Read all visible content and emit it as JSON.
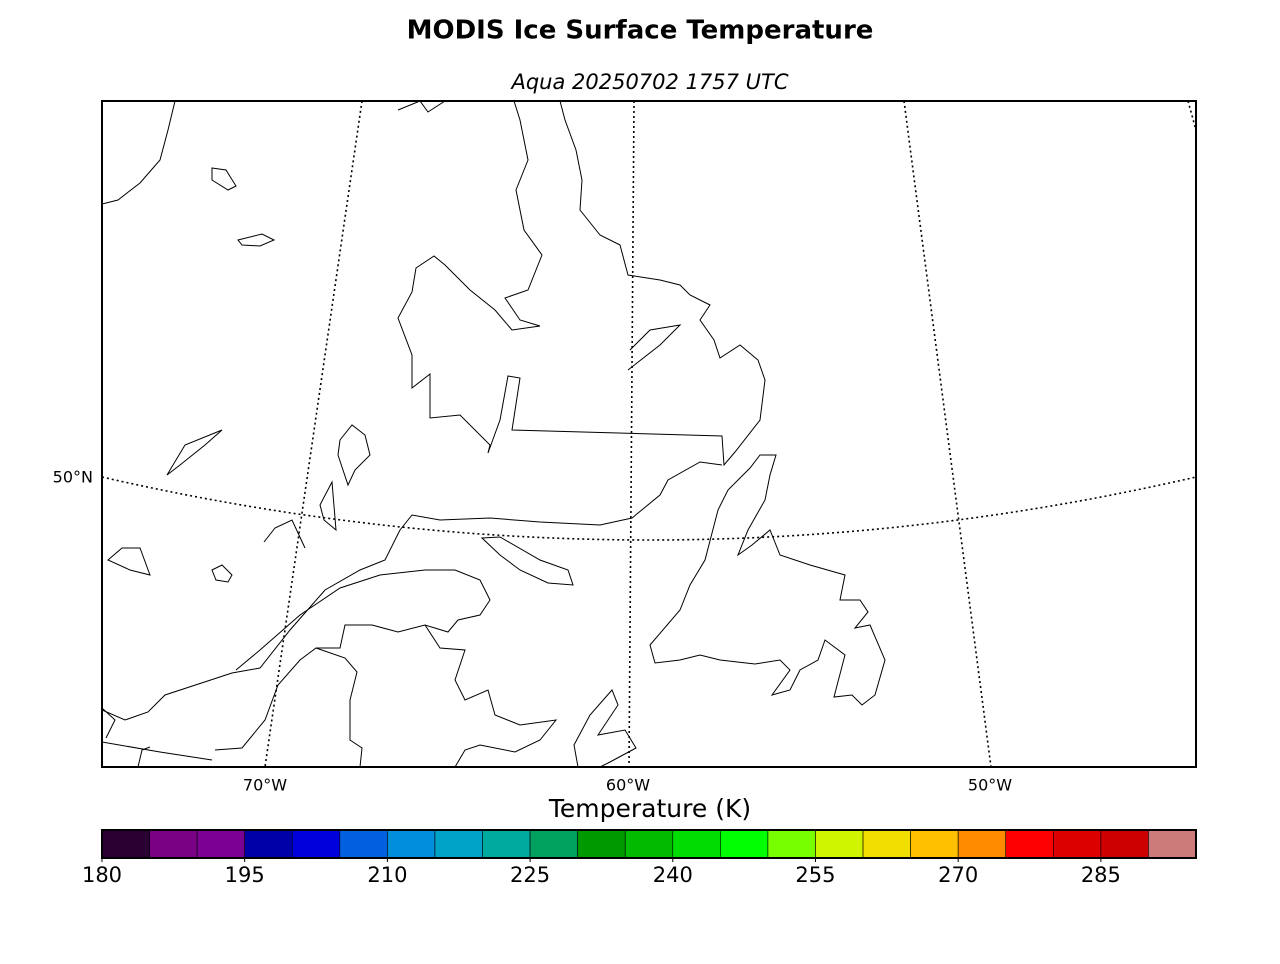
{
  "title": "MODIS Ice Surface Temperature",
  "subtitle": "Aqua 20250702 1757 UTC",
  "map": {
    "lat_labels": [
      "50°N"
    ],
    "lon_labels": [
      "70°W",
      "60°W",
      "50°W"
    ]
  },
  "colorbar": {
    "label": "Temperature (K)",
    "levels": [
      180,
      185,
      190,
      195,
      200,
      205,
      210,
      215,
      220,
      225,
      230,
      235,
      240,
      245,
      250,
      255,
      260,
      265,
      270,
      275,
      280,
      285,
      290,
      295
    ],
    "colors": [
      "#2a0033",
      "#7a0084",
      "#7d0095",
      "#0000a8",
      "#0000dd",
      "#0060e0",
      "#008fdd",
      "#00a3c8",
      "#00aa9e",
      "#00a05f",
      "#009a00",
      "#00bb00",
      "#00dd00",
      "#00ff00",
      "#77ff00",
      "#d0f500",
      "#f0df00",
      "#ffc000",
      "#ff8b00",
      "#ff0000",
      "#dd0000",
      "#cc0000",
      "#cc7a7a"
    ],
    "ticks": [
      180,
      195,
      210,
      225,
      240,
      255,
      270,
      285
    ]
  }
}
